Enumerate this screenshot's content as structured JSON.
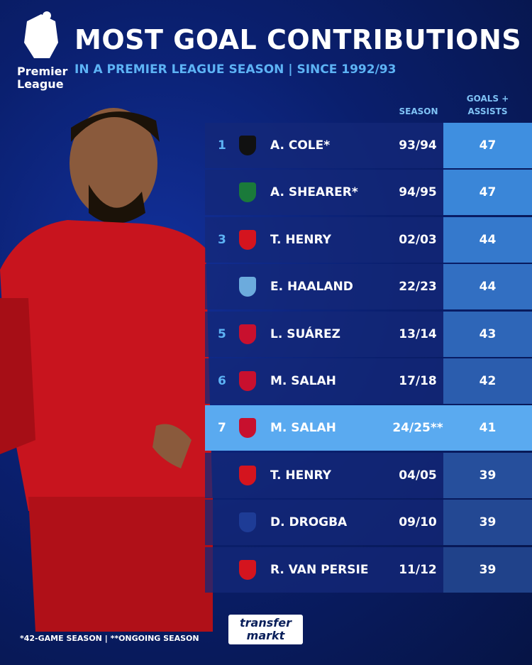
{
  "header": {
    "logo_text": [
      "Premier",
      "League"
    ],
    "title": "MOST GOAL CONTRIBUTIONS",
    "subtitle": "IN A PREMIER LEAGUE SEASON | SINCE 1992/93"
  },
  "table": {
    "columns": [
      "SEASON",
      "GOALS + ASSISTS"
    ],
    "rows": [
      {
        "rank": 1,
        "player": "A. COLE*",
        "season": "93/94",
        "value": 47
      },
      {
        "rank": null,
        "player": "A. SHEARER*",
        "season": "94/95",
        "value": 47
      },
      {
        "rank": 3,
        "player": "T. HENRY",
        "season": "02/03",
        "value": 44
      },
      {
        "rank": null,
        "player": "E. HAALAND",
        "season": "22/23",
        "value": 44
      },
      {
        "rank": 5,
        "player": "L. SUÁREZ",
        "season": "13/14",
        "value": 43
      },
      {
        "rank": 6,
        "player": "M. SALAH",
        "season": "17/18",
        "value": 42
      },
      {
        "rank": 7,
        "player": "M. SALAH",
        "season": "24/25**",
        "value": 41
      },
      {
        "rank": null,
        "player": "T. HENRY",
        "season": "04/05",
        "value": 39
      },
      {
        "rank": null,
        "player": "D. DROGBA",
        "season": "09/10",
        "value": 39
      },
      {
        "rank": null,
        "player": "R. VAN PERSIE",
        "season": "11/12",
        "value": 39
      }
    ]
  },
  "footer": {
    "note": "*42-GAME SEASON | **ONGOING SEASON",
    "brand": [
      "transfer",
      "markt"
    ]
  }
}
